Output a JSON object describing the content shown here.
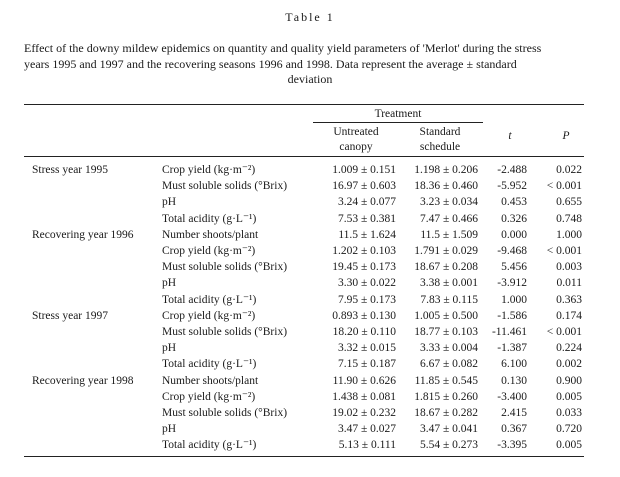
{
  "table_label": "Table 1",
  "caption_lines": [
    "Effect of the downy mildew epidemics on quantity and quality yield parameters of 'Merlot' during the stress",
    "years 1995 and 1997 and the recovering seasons 1996 and 1998. Data represent the average ± standard"
  ],
  "caption_last": "deviation",
  "header": {
    "treatment": "Treatment",
    "untreated_line1": "Untreated",
    "untreated_line2": "canopy",
    "standard_line1": "Standard",
    "standard_line2": "schedule",
    "t": "t",
    "p": "P"
  },
  "rows": [
    {
      "group": "Stress year 1995",
      "param": "Crop yield (kg·m⁻²)",
      "untreated": "1.009 ± 0.151",
      "standard": "1.198 ± 0.206",
      "t": "-2.488",
      "p": "0.022"
    },
    {
      "group": "",
      "param": "Must soluble solids (°Brix)",
      "untreated": "16.97 ± 0.603",
      "standard": "18.36 ± 0.460",
      "t": "-5.952",
      "p": "< 0.001"
    },
    {
      "group": "",
      "param": "pH",
      "untreated": "3.24 ± 0.077",
      "standard": "3.23 ± 0.034",
      "t": "0.453",
      "p": "0.655"
    },
    {
      "group": "",
      "param": "Total acidity (g·L⁻¹)",
      "untreated": "7.53 ± 0.381",
      "standard": "7.47 ± 0.466",
      "t": "0.326",
      "p": "0.748"
    },
    {
      "group": "Recovering year 1996",
      "param": "Number shoots/plant",
      "untreated": "11.5 ± 1.624",
      "standard": "11.5 ± 1.509",
      "t": "0.000",
      "p": "1.000"
    },
    {
      "group": "",
      "param": "Crop yield (kg·m⁻²)",
      "untreated": "1.202 ± 0.103",
      "standard": "1.791 ± 0.029",
      "t": "-9.468",
      "p": "< 0.001"
    },
    {
      "group": "",
      "param": "Must soluble solids (°Brix)",
      "untreated": "19.45 ± 0.173",
      "standard": "18.67 ± 0.208",
      "t": "5.456",
      "p": "0.003"
    },
    {
      "group": "",
      "param": "pH",
      "untreated": "3.30 ± 0.022",
      "standard": "3.38 ± 0.001",
      "t": "-3.912",
      "p": "0.011"
    },
    {
      "group": "",
      "param": "Total acidity (g·L⁻¹)",
      "untreated": "7.95 ± 0.173",
      "standard": "7.83 ± 0.115",
      "t": "1.000",
      "p": "0.363"
    },
    {
      "group": "Stress year 1997",
      "param": "Crop yield (kg·m⁻²)",
      "untreated": "0.893 ± 0.130",
      "standard": "1.005 ± 0.500",
      "t": "-1.586",
      "p": "0.174"
    },
    {
      "group": "",
      "param": "Must soluble solids (°Brix)",
      "untreated": "18.20 ± 0.110",
      "standard": "18.77 ± 0.103",
      "t": "-11.461",
      "p": "< 0.001"
    },
    {
      "group": "",
      "param": "pH",
      "untreated": "3.32 ± 0.015",
      "standard": "3.33 ± 0.004",
      "t": "-1.387",
      "p": "0.224"
    },
    {
      "group": "",
      "param": "Total acidity (g·L⁻¹)",
      "untreated": "7.15 ± 0.187",
      "standard": "6.67 ± 0.082",
      "t": "6.100",
      "p": "0.002"
    },
    {
      "group": "Recovering year 1998",
      "param": "Number shoots/plant",
      "untreated": "11.90 ± 0.626",
      "standard": "11.85 ± 0.545",
      "t": "0.130",
      "p": "0.900"
    },
    {
      "group": "",
      "param": "Crop yield (kg·m⁻²)",
      "untreated": "1.438 ± 0.081",
      "standard": "1.815 ± 0.260",
      "t": "-3.400",
      "p": "0.005"
    },
    {
      "group": "",
      "param": "Must soluble solids (°Brix)",
      "untreated": "19.02 ± 0.232",
      "standard": "18.67 ± 0.282",
      "t": "2.415",
      "p": "0.033"
    },
    {
      "group": "",
      "param": "pH",
      "untreated": "3.47 ± 0.027",
      "standard": "3.47 ± 0.041",
      "t": "0.367",
      "p": "0.720"
    },
    {
      "group": "",
      "param": "Total acidity (g·L⁻¹)",
      "untreated": "5.13 ± 0.111",
      "standard": "5.54 ± 0.273",
      "t": "-3.395",
      "p": "0.005"
    }
  ]
}
